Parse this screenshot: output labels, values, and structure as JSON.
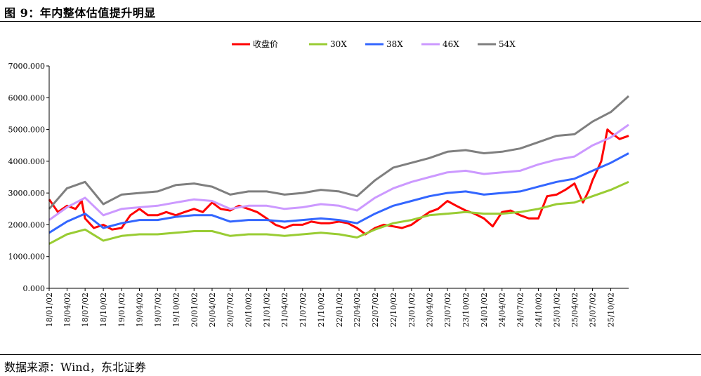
{
  "figure": {
    "title": "图 9：年内整体估值提升明显",
    "source": "数据来源：Wind，东北证券"
  },
  "chart_data": {
    "type": "line",
    "ylim": [
      0,
      7000
    ],
    "y_ticks": [
      "0.000",
      "1000.000",
      "2000.000",
      "3000.000",
      "4000.000",
      "5000.000",
      "6000.000",
      "7000.000"
    ],
    "x_ticks": [
      "18/01/02",
      "18/04/02",
      "18/07/02",
      "18/10/02",
      "19/01/02",
      "19/04/02",
      "19/07/02",
      "19/10/02",
      "20/01/02",
      "20/04/02",
      "20/07/02",
      "20/10/02",
      "21/01/02",
      "21/04/02",
      "21/07/02",
      "21/10/02",
      "22/01/02",
      "22/04/02",
      "22/07/02",
      "22/10/02",
      "23/01/02",
      "23/04/02",
      "23/07/02",
      "23/10/02",
      "24/01/02",
      "24/04/02",
      "24/07/02",
      "24/10/02",
      "25/01/02",
      "25/04/02",
      "25/07/02",
      "25/10/02"
    ],
    "x_range": [
      "18/01/02",
      "25/12/31"
    ],
    "grid": false,
    "legend_position": "top-center",
    "series": [
      {
        "name": "收盘价",
        "color": "#ff0000",
        "points": [
          [
            "18/01/02",
            2800
          ],
          [
            "18/02/15",
            2400
          ],
          [
            "18/04/02",
            2600
          ],
          [
            "18/05/15",
            2500
          ],
          [
            "18/06/15",
            2750
          ],
          [
            "18/07/02",
            2200
          ],
          [
            "18/08/15",
            1900
          ],
          [
            "18/10/02",
            2000
          ],
          [
            "18/11/15",
            1850
          ],
          [
            "19/01/02",
            1900
          ],
          [
            "19/02/15",
            2300
          ],
          [
            "19/04/02",
            2500
          ],
          [
            "19/05/15",
            2300
          ],
          [
            "19/07/02",
            2300
          ],
          [
            "19/08/15",
            2400
          ],
          [
            "19/10/02",
            2300
          ],
          [
            "19/11/15",
            2400
          ],
          [
            "20/01/02",
            2500
          ],
          [
            "20/02/15",
            2400
          ],
          [
            "20/04/02",
            2700
          ],
          [
            "20/05/15",
            2500
          ],
          [
            "20/07/02",
            2450
          ],
          [
            "20/08/15",
            2600
          ],
          [
            "20/10/02",
            2500
          ],
          [
            "20/11/15",
            2400
          ],
          [
            "21/01/02",
            2200
          ],
          [
            "21/02/15",
            2000
          ],
          [
            "21/04/02",
            1900
          ],
          [
            "21/05/15",
            2000
          ],
          [
            "21/07/02",
            2000
          ],
          [
            "21/08/15",
            2100
          ],
          [
            "21/10/02",
            2050
          ],
          [
            "21/11/15",
            2050
          ],
          [
            "22/01/02",
            2100
          ],
          [
            "22/02/15",
            2050
          ],
          [
            "22/04/02",
            1900
          ],
          [
            "22/05/15",
            1700
          ],
          [
            "22/07/02",
            1900
          ],
          [
            "22/08/15",
            2000
          ],
          [
            "22/10/02",
            1950
          ],
          [
            "22/11/15",
            1900
          ],
          [
            "23/01/02",
            2000
          ],
          [
            "23/02/15",
            2200
          ],
          [
            "23/04/02",
            2400
          ],
          [
            "23/05/15",
            2500
          ],
          [
            "23/07/02",
            2750
          ],
          [
            "23/08/15",
            2600
          ],
          [
            "23/10/02",
            2450
          ],
          [
            "23/11/15",
            2350
          ],
          [
            "24/01/02",
            2200
          ],
          [
            "24/02/15",
            1950
          ],
          [
            "24/04/02",
            2400
          ],
          [
            "24/05/15",
            2450
          ],
          [
            "24/07/02",
            2300
          ],
          [
            "24/08/15",
            2200
          ],
          [
            "24/10/02",
            2200
          ],
          [
            "24/11/15",
            2900
          ],
          [
            "25/01/02",
            2950
          ],
          [
            "25/02/15",
            3100
          ],
          [
            "25/04/02",
            3300
          ],
          [
            "25/05/15",
            2700
          ],
          [
            "25/06/15",
            3100
          ],
          [
            "25/07/02",
            3400
          ],
          [
            "25/08/15",
            4000
          ],
          [
            "25/09/15",
            5000
          ],
          [
            "25/10/02",
            4900
          ],
          [
            "25/11/15",
            4700
          ],
          [
            "25/12/31",
            4800
          ]
        ]
      },
      {
        "name": "30X",
        "color": "#99cc33",
        "points": [
          [
            "18/01/02",
            1400
          ],
          [
            "18/04/02",
            1700
          ],
          [
            "18/07/02",
            1850
          ],
          [
            "18/10/02",
            1500
          ],
          [
            "19/01/02",
            1650
          ],
          [
            "19/04/02",
            1700
          ],
          [
            "19/07/02",
            1700
          ],
          [
            "19/10/02",
            1750
          ],
          [
            "20/01/02",
            1800
          ],
          [
            "20/04/02",
            1800
          ],
          [
            "20/07/02",
            1650
          ],
          [
            "20/10/02",
            1700
          ],
          [
            "21/01/02",
            1700
          ],
          [
            "21/04/02",
            1650
          ],
          [
            "21/07/02",
            1700
          ],
          [
            "21/10/02",
            1750
          ],
          [
            "22/01/02",
            1700
          ],
          [
            "22/04/02",
            1600
          ],
          [
            "22/07/02",
            1850
          ],
          [
            "22/10/02",
            2050
          ],
          [
            "23/01/02",
            2150
          ],
          [
            "23/04/02",
            2300
          ],
          [
            "23/07/02",
            2350
          ],
          [
            "23/10/02",
            2400
          ],
          [
            "24/01/02",
            2350
          ],
          [
            "24/04/02",
            2350
          ],
          [
            "24/07/02",
            2400
          ],
          [
            "24/10/02",
            2500
          ],
          [
            "25/01/02",
            2650
          ],
          [
            "25/04/02",
            2700
          ],
          [
            "25/07/02",
            2900
          ],
          [
            "25/10/02",
            3100
          ],
          [
            "25/12/31",
            3350
          ]
        ]
      },
      {
        "name": "38X",
        "color": "#3366ff",
        "points": [
          [
            "18/01/02",
            1750
          ],
          [
            "18/04/02",
            2100
          ],
          [
            "18/07/02",
            2350
          ],
          [
            "18/10/02",
            1900
          ],
          [
            "19/01/02",
            2050
          ],
          [
            "19/04/02",
            2150
          ],
          [
            "19/07/02",
            2150
          ],
          [
            "19/10/02",
            2250
          ],
          [
            "20/01/02",
            2300
          ],
          [
            "20/04/02",
            2300
          ],
          [
            "20/07/02",
            2100
          ],
          [
            "20/10/02",
            2150
          ],
          [
            "21/01/02",
            2150
          ],
          [
            "21/04/02",
            2100
          ],
          [
            "21/07/02",
            2150
          ],
          [
            "21/10/02",
            2200
          ],
          [
            "22/01/02",
            2150
          ],
          [
            "22/04/02",
            2050
          ],
          [
            "22/07/02",
            2350
          ],
          [
            "22/10/02",
            2600
          ],
          [
            "23/01/02",
            2750
          ],
          [
            "23/04/02",
            2900
          ],
          [
            "23/07/02",
            3000
          ],
          [
            "23/10/02",
            3050
          ],
          [
            "24/01/02",
            2950
          ],
          [
            "24/04/02",
            3000
          ],
          [
            "24/07/02",
            3050
          ],
          [
            "24/10/02",
            3200
          ],
          [
            "25/01/02",
            3350
          ],
          [
            "25/04/02",
            3450
          ],
          [
            "25/07/02",
            3700
          ],
          [
            "25/10/02",
            3950
          ],
          [
            "25/12/31",
            4250
          ]
        ]
      },
      {
        "name": "46X",
        "color": "#cc99ff",
        "points": [
          [
            "18/01/02",
            2150
          ],
          [
            "18/04/02",
            2550
          ],
          [
            "18/07/02",
            2850
          ],
          [
            "18/10/02",
            2300
          ],
          [
            "19/01/02",
            2500
          ],
          [
            "19/04/02",
            2550
          ],
          [
            "19/07/02",
            2600
          ],
          [
            "19/10/02",
            2700
          ],
          [
            "20/01/02",
            2800
          ],
          [
            "20/04/02",
            2750
          ],
          [
            "20/07/02",
            2500
          ],
          [
            "20/10/02",
            2600
          ],
          [
            "21/01/02",
            2600
          ],
          [
            "21/04/02",
            2500
          ],
          [
            "21/07/02",
            2550
          ],
          [
            "21/10/02",
            2650
          ],
          [
            "22/01/02",
            2600
          ],
          [
            "22/04/02",
            2450
          ],
          [
            "22/07/02",
            2850
          ],
          [
            "22/10/02",
            3150
          ],
          [
            "23/01/02",
            3350
          ],
          [
            "23/04/02",
            3500
          ],
          [
            "23/07/02",
            3650
          ],
          [
            "23/10/02",
            3700
          ],
          [
            "24/01/02",
            3600
          ],
          [
            "24/04/02",
            3650
          ],
          [
            "24/07/02",
            3700
          ],
          [
            "24/10/02",
            3900
          ],
          [
            "25/01/02",
            4050
          ],
          [
            "25/04/02",
            4150
          ],
          [
            "25/07/02",
            4500
          ],
          [
            "25/10/02",
            4750
          ],
          [
            "25/12/31",
            5150
          ]
        ]
      },
      {
        "name": "54X",
        "color": "#7f7f7f",
        "points": [
          [
            "18/01/02",
            2500
          ],
          [
            "18/04/02",
            3150
          ],
          [
            "18/07/02",
            3350
          ],
          [
            "18/10/02",
            2650
          ],
          [
            "19/01/02",
            2950
          ],
          [
            "19/04/02",
            3000
          ],
          [
            "19/07/02",
            3050
          ],
          [
            "19/10/02",
            3250
          ],
          [
            "20/01/02",
            3300
          ],
          [
            "20/04/02",
            3200
          ],
          [
            "20/07/02",
            2950
          ],
          [
            "20/10/02",
            3050
          ],
          [
            "21/01/02",
            3050
          ],
          [
            "21/04/02",
            2950
          ],
          [
            "21/07/02",
            3000
          ],
          [
            "21/10/02",
            3100
          ],
          [
            "22/01/02",
            3050
          ],
          [
            "22/04/02",
            2900
          ],
          [
            "22/07/02",
            3400
          ],
          [
            "22/10/02",
            3800
          ],
          [
            "23/01/02",
            3950
          ],
          [
            "23/04/02",
            4100
          ],
          [
            "23/07/02",
            4300
          ],
          [
            "23/10/02",
            4350
          ],
          [
            "24/01/02",
            4250
          ],
          [
            "24/04/02",
            4300
          ],
          [
            "24/07/02",
            4400
          ],
          [
            "24/10/02",
            4600
          ],
          [
            "25/01/02",
            4800
          ],
          [
            "25/04/02",
            4850
          ],
          [
            "25/07/02",
            5250
          ],
          [
            "25/10/02",
            5550
          ],
          [
            "25/12/31",
            6050
          ]
        ]
      }
    ]
  }
}
